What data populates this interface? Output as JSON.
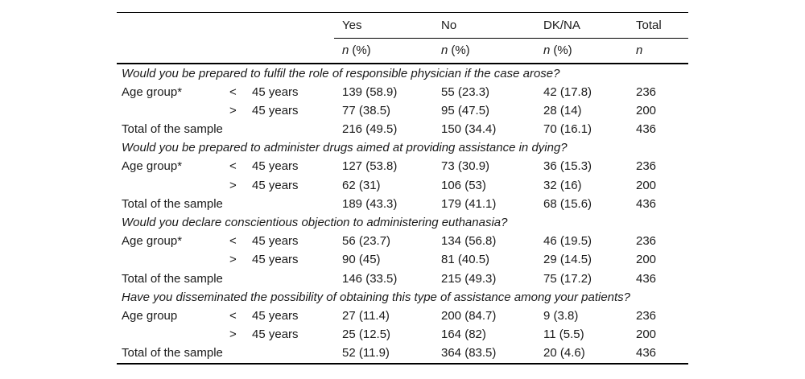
{
  "colors": {
    "background": "#ffffff",
    "text": "#1a1a1a",
    "rule": "#000000"
  },
  "table": {
    "header": {
      "columns": [
        {
          "label": "Yes",
          "sub_symbol": "n",
          "sub_rest": "(%)"
        },
        {
          "label": "No",
          "sub_symbol": "n",
          "sub_rest": "(%)"
        },
        {
          "label": "DK/NA",
          "sub_symbol": "n",
          "sub_rest": "(%)"
        },
        {
          "label": "Total",
          "sub_symbol": "n",
          "sub_rest": ""
        }
      ]
    },
    "sections": [
      {
        "question": "Would you be prepared to fulfil the role of responsible physician if the case arose?",
        "rows": [
          {
            "label": "Age group*",
            "op": "<",
            "years": "45 years",
            "yes": "139 (58.9)",
            "no": "55 (23.3)",
            "dkna": "42 (17.8)",
            "total": "236"
          },
          {
            "label": "",
            "op": ">",
            "years": "45 years",
            "yes": "77 (38.5)",
            "no": "95 (47.5)",
            "dkna": "28 (14)",
            "total": "200"
          },
          {
            "label": "Total of the sample",
            "op": "",
            "years": "",
            "yes": "216 (49.5)",
            "no": "150 (34.4)",
            "dkna": "70 (16.1)",
            "total": "436"
          }
        ]
      },
      {
        "question": "Would you be prepared to administer drugs aimed at providing assistance in dying?",
        "rows": [
          {
            "label": "Age group*",
            "op": "<",
            "years": "45 years",
            "yes": "127 (53.8)",
            "no": "73 (30.9)",
            "dkna": "36 (15.3)",
            "total": "236"
          },
          {
            "label": "",
            "op": ">",
            "years": "45 years",
            "yes": "62 (31)",
            "no": "106 (53)",
            "dkna": "32 (16)",
            "total": "200"
          },
          {
            "label": "Total of the sample",
            "op": "",
            "years": "",
            "yes": "189 (43.3)",
            "no": "179 (41.1)",
            "dkna": "68 (15.6)",
            "total": "436"
          }
        ]
      },
      {
        "question": "Would you declare conscientious objection to administering euthanasia?",
        "rows": [
          {
            "label": "Age group*",
            "op": "<",
            "years": "45 years",
            "yes": "56 (23.7)",
            "no": "134 (56.8)",
            "dkna": "46 (19.5)",
            "total": "236"
          },
          {
            "label": "",
            "op": ">",
            "years": "45 years",
            "yes": "90 (45)",
            "no": "81 (40.5)",
            "dkna": "29 (14.5)",
            "total": "200"
          },
          {
            "label": "Total of the sample",
            "op": "",
            "years": "",
            "yes": "146 (33.5)",
            "no": "215 (49.3)",
            "dkna": "75 (17.2)",
            "total": "436"
          }
        ]
      },
      {
        "question": "Have you disseminated the possibility of obtaining this type of assistance among your patients?",
        "rows": [
          {
            "label": "Age group",
            "op": "<",
            "years": "45 years",
            "yes": "27 (11.4)",
            "no": "200 (84.7)",
            "dkna": "9 (3.8)",
            "total": "236"
          },
          {
            "label": "",
            "op": ">",
            "years": "45 years",
            "yes": "25 (12.5)",
            "no": "164 (82)",
            "dkna": "11 (5.5)",
            "total": "200"
          },
          {
            "label": "Total of the sample",
            "op": "",
            "years": "",
            "yes": "52 (11.9)",
            "no": "364 (83.5)",
            "dkna": "20 (4.6)",
            "total": "436"
          }
        ]
      }
    ]
  }
}
